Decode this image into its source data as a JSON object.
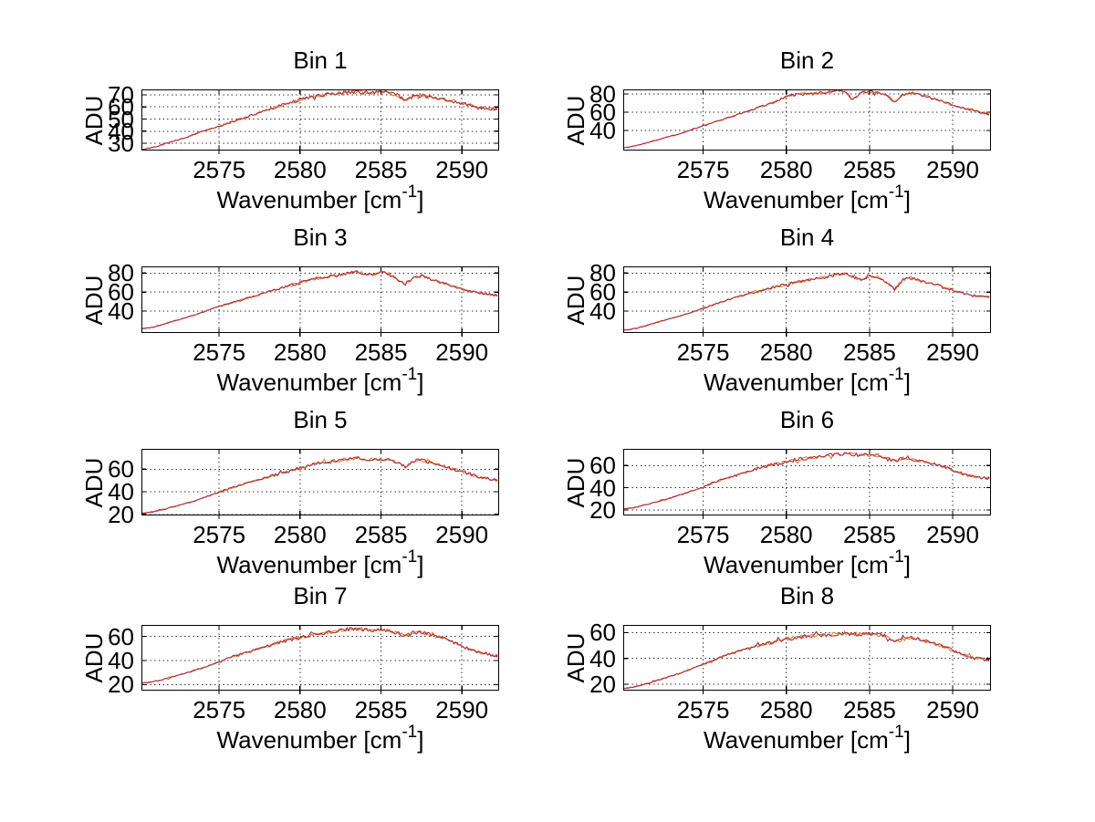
{
  "figure": {
    "background": "#ffffff",
    "grid_color": "#000000",
    "axis_color": "#000000",
    "text_color": "#000000"
  },
  "chart_data": {
    "type": "line",
    "layout": "4x2 subplots",
    "xlabel": {
      "text": "Wavenumber [cm^-1]",
      "base": "Wavenumber [cm",
      "sup": "-1",
      "end": "]"
    },
    "ylabel": "ADU",
    "xlim": [
      2570.2,
      2592.3
    ],
    "xticks": [
      2575,
      2580,
      2585,
      2590
    ],
    "grid": true,
    "noise_amplitude": 1.5,
    "series": [
      {
        "name": "spectrum-overlay-orange",
        "color": "#e0822a"
      },
      {
        "name": "spectrum-main-red",
        "color": "#aa2d46"
      }
    ],
    "shared_x": [
      2570.2,
      2570.5,
      2571,
      2571.5,
      2572,
      2572.5,
      2573,
      2573.5,
      2574,
      2574.5,
      2575,
      2575.5,
      2576,
      2576.5,
      2577,
      2577.5,
      2578,
      2578.5,
      2579,
      2579.5,
      2580,
      2580.5,
      2581,
      2581.5,
      2582,
      2582.5,
      2583,
      2583.5,
      2584,
      2584.5,
      2585,
      2585.5,
      2586,
      2586.5,
      2587,
      2587.5,
      2588,
      2588.5,
      2589,
      2589.5,
      2590,
      2590.5,
      2591,
      2591.5,
      2592,
      2592.2
    ],
    "subplots": [
      {
        "title": "Bin 1",
        "ylim": [
          24,
          74.5
        ],
        "yticks": [
          30,
          40,
          50,
          60,
          70
        ],
        "values": [
          24.5,
          25.5,
          27,
          29,
          31,
          33,
          35,
          37.5,
          40,
          42,
          44,
          46.5,
          48.5,
          51,
          53,
          55.5,
          58,
          60,
          62,
          64,
          66,
          67.5,
          69,
          70,
          71,
          71.5,
          72,
          72.5,
          72,
          71.5,
          72.5,
          71.5,
          70,
          65,
          69,
          70,
          68,
          67,
          66,
          64.5,
          63,
          61.5,
          60,
          58.5,
          58,
          58.5
        ]
      },
      {
        "title": "Bin 2",
        "ylim": [
          18,
          85
        ],
        "yticks": [
          40,
          60,
          80
        ],
        "values": [
          21,
          21.5,
          23.5,
          26,
          28.5,
          31,
          33.5,
          36,
          39,
          42,
          45,
          48,
          51,
          54,
          57,
          60,
          63,
          66,
          69,
          73,
          77,
          79,
          80,
          80.5,
          81,
          82,
          84,
          83,
          73,
          82,
          82.5,
          81,
          79,
          71,
          79,
          82,
          79,
          77,
          74,
          71,
          68,
          65,
          63,
          60.5,
          58,
          58
        ]
      },
      {
        "title": "Bin 3",
        "ylim": [
          17,
          87
        ],
        "yticks": [
          40,
          60,
          80
        ],
        "values": [
          21.5,
          22,
          23.5,
          26,
          28.5,
          31,
          33.5,
          36,
          39,
          42,
          45,
          47.5,
          50,
          52.5,
          55,
          57.5,
          60,
          62.5,
          65,
          67.5,
          70,
          72,
          74,
          75.5,
          77,
          78,
          80,
          82,
          79,
          78,
          81,
          79,
          73,
          68,
          75,
          77,
          74,
          71,
          69,
          66,
          63.5,
          61,
          59.5,
          58,
          57,
          57
        ]
      },
      {
        "title": "Bin 4",
        "ylim": [
          17,
          87
        ],
        "yticks": [
          40,
          60,
          80
        ],
        "values": [
          20,
          20.5,
          22,
          24.5,
          27,
          29.5,
          32,
          34.5,
          37,
          40,
          43,
          46,
          49,
          52,
          54.5,
          57,
          60,
          62,
          64,
          66,
          68,
          70,
          72,
          73.5,
          75,
          76.5,
          78,
          80,
          76,
          73,
          77,
          76,
          70,
          63,
          73,
          75,
          72,
          70,
          68,
          65,
          62,
          59,
          57,
          55.5,
          55,
          55
        ]
      },
      {
        "title": "Bin 5",
        "ylim": [
          19,
          78
        ],
        "yticks": [
          20,
          40,
          60
        ],
        "values": [
          21,
          21.5,
          22.5,
          24,
          26,
          28,
          30,
          32,
          34.5,
          37,
          39.5,
          42,
          44.5,
          47,
          49,
          51,
          53,
          55,
          57,
          59,
          61,
          63,
          65,
          66,
          67,
          68,
          69,
          70,
          69,
          68.5,
          69.5,
          68.5,
          66,
          62,
          67,
          68,
          66,
          64,
          62,
          60,
          58,
          55.5,
          53.5,
          52,
          50.5,
          50.5
        ]
      },
      {
        "title": "Bin 6",
        "ylim": [
          15,
          75
        ],
        "yticks": [
          20,
          40,
          60
        ],
        "values": [
          21,
          21.5,
          22.5,
          24.5,
          26.5,
          28.5,
          30.5,
          33,
          35.5,
          38,
          40.5,
          44,
          46.5,
          49,
          51,
          53.5,
          56,
          58,
          60,
          61.5,
          63,
          64.5,
          66,
          67,
          68,
          69,
          70,
          71,
          70,
          69,
          70,
          69,
          67,
          64,
          66.5,
          66,
          64,
          62.5,
          61,
          59,
          56,
          53,
          51,
          49.5,
          48.5,
          48.5
        ]
      },
      {
        "title": "Bin 7",
        "ylim": [
          15,
          69.5
        ],
        "yticks": [
          20,
          40,
          60
        ],
        "values": [
          21,
          21.5,
          22.5,
          24,
          26,
          28,
          30,
          32,
          34,
          36.5,
          39,
          41.5,
          44,
          46,
          48,
          50,
          52,
          54,
          56,
          57.5,
          59,
          60.5,
          62,
          63,
          64,
          65,
          66,
          66.5,
          65.5,
          64.5,
          65.5,
          64.5,
          63,
          60,
          63,
          63.5,
          61.5,
          60,
          58,
          55,
          52,
          49,
          47,
          45.5,
          44,
          44
        ]
      },
      {
        "title": "Bin 8",
        "ylim": [
          15,
          66
        ],
        "yticks": [
          20,
          40,
          60
        ],
        "values": [
          16.5,
          17,
          18.5,
          20,
          22,
          24,
          26,
          28,
          30.5,
          33,
          35.5,
          38,
          40.5,
          43,
          45,
          47,
          49,
          50.5,
          52,
          53.5,
          55,
          56,
          57,
          57.5,
          58,
          58.5,
          59,
          59.5,
          59,
          58.5,
          59,
          58.5,
          57,
          53,
          55,
          56,
          55,
          53,
          51,
          49,
          46,
          43.5,
          41.5,
          40,
          39,
          39.5
        ]
      }
    ]
  }
}
